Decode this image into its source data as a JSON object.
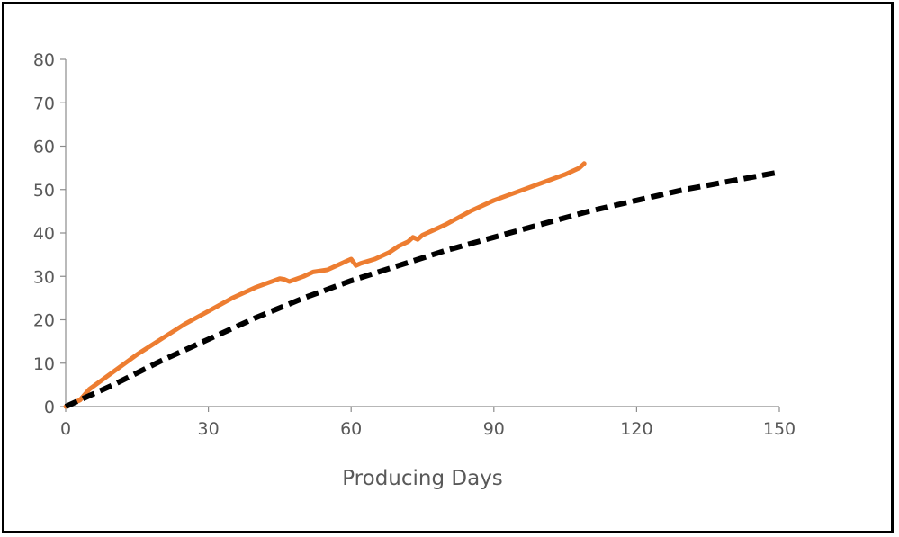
{
  "chart_data": {
    "type": "line",
    "title": "",
    "xlabel": "Producing Days",
    "ylabel": "",
    "xlim": [
      0,
      150
    ],
    "ylim": [
      0,
      80
    ],
    "xticks": [
      0,
      30,
      60,
      90,
      120,
      150
    ],
    "yticks": [
      0,
      10,
      20,
      30,
      40,
      50,
      60,
      70,
      80
    ],
    "grid": false,
    "legend": "none",
    "series": [
      {
        "color": "#ED7D31",
        "style": "solid",
        "x": [
          0,
          3,
          5,
          10,
          15,
          20,
          25,
          30,
          35,
          40,
          45,
          46,
          47,
          50,
          52,
          55,
          58,
          60,
          61,
          62,
          65,
          68,
          70,
          72,
          73,
          74,
          75,
          78,
          80,
          85,
          90,
          95,
          100,
          105,
          108,
          109
        ],
        "y": [
          0,
          1.5,
          4,
          8,
          12,
          15.5,
          19,
          22,
          25,
          27.5,
          29.5,
          29.3,
          28.8,
          30,
          31,
          31.5,
          33,
          34,
          32.5,
          33,
          34,
          35.5,
          37,
          38,
          39,
          38.5,
          39.5,
          41,
          42,
          45,
          47.5,
          49.5,
          51.5,
          53.5,
          55,
          56
        ]
      },
      {
        "color": "#000000",
        "style": "dashed",
        "x": [
          0,
          5,
          10,
          20,
          30,
          40,
          50,
          60,
          70,
          80,
          90,
          100,
          110,
          120,
          130,
          140,
          150
        ],
        "y": [
          0,
          2.5,
          5,
          10.5,
          15.5,
          20.5,
          25,
          29,
          32.5,
          36,
          39,
          42,
          45,
          47.5,
          50,
          52,
          54
        ]
      }
    ]
  }
}
